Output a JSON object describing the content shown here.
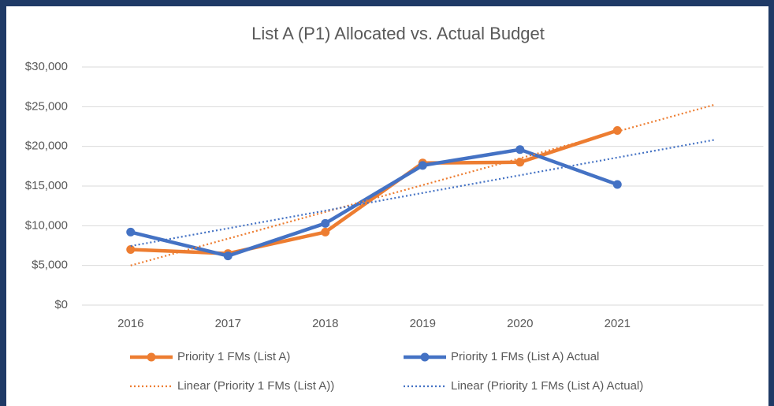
{
  "chart_data": {
    "type": "line",
    "title": "List A (P1) Allocated vs. Actual Budget",
    "categories": [
      "2016",
      "2017",
      "2018",
      "2019",
      "2020",
      "2021",
      null
    ],
    "series": [
      {
        "name": "Priority 1 FMs (List A)",
        "color": "#ed7d31",
        "style": "solid",
        "marker": true,
        "values": [
          7000,
          6500,
          9200,
          17900,
          18000,
          22000,
          null
        ]
      },
      {
        "name": "Priority 1 FMs (List A) Actual",
        "color": "#4472c4",
        "style": "solid",
        "marker": true,
        "values": [
          9200,
          6200,
          10300,
          17600,
          19600,
          15200,
          null
        ]
      },
      {
        "name": "Linear (Priority 1 FMs (List A))",
        "color": "#ed7d31",
        "style": "dotted",
        "marker": false,
        "values": [
          4990,
          8367,
          11744,
          15121,
          18498,
          21875,
          25253
        ]
      },
      {
        "name": "Linear (Priority 1 FMs (List A) Actual)",
        "color": "#4472c4",
        "style": "dotted",
        "marker": false,
        "values": [
          7438,
          9669,
          11900,
          14131,
          16362,
          18593,
          20827
        ]
      }
    ],
    "ylim": [
      0,
      30000
    ],
    "yticks": [
      {
        "value": 0,
        "label": "$0"
      },
      {
        "value": 5000,
        "label": "$5,000"
      },
      {
        "value": 10000,
        "label": "$10,000"
      },
      {
        "value": 15000,
        "label": "$15,000"
      },
      {
        "value": 20000,
        "label": "$20,000"
      },
      {
        "value": 25000,
        "label": "$25,000"
      },
      {
        "value": 30000,
        "label": "$30,000"
      }
    ],
    "grid": true,
    "legend": "bottom"
  }
}
